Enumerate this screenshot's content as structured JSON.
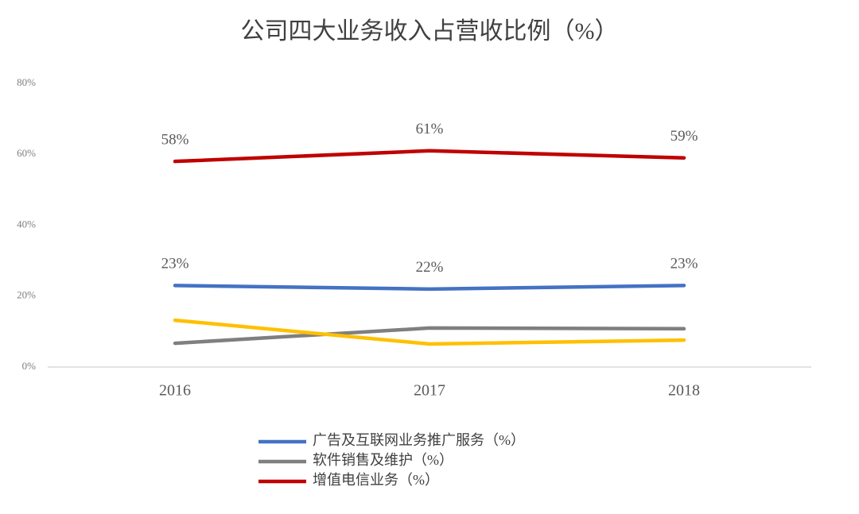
{
  "chart_data": {
    "type": "line",
    "title": "公司四大业务收入占营收比例（%）",
    "categories": [
      "2016",
      "2017",
      "2018"
    ],
    "series": [
      {
        "name": "广告及互联网业务推广服务（%）",
        "color": "#4472c4",
        "values": [
          23,
          22,
          23
        ],
        "value_labels": [
          "23%",
          "22%",
          "23%"
        ]
      },
      {
        "name": "软件销售及维护（%）",
        "color": "#7f7f7f",
        "values": [
          6.7,
          11,
          10.8
        ]
      },
      {
        "name": "增值电信业务（%）",
        "color": "#c00000",
        "values": [
          58,
          61,
          59
        ],
        "value_labels": [
          "58%",
          "61%",
          "59%"
        ]
      },
      {
        "color": "#ffc000",
        "values": [
          13.2,
          6.5,
          7.6
        ]
      }
    ],
    "ylim": [
      0,
      80
    ],
    "yticks": [
      {
        "value": 0,
        "label": "0%"
      },
      {
        "value": 20,
        "label": "20%"
      },
      {
        "value": 40,
        "label": "40%"
      },
      {
        "value": 60,
        "label": "60%"
      },
      {
        "value": 80,
        "label": "80%"
      }
    ]
  }
}
